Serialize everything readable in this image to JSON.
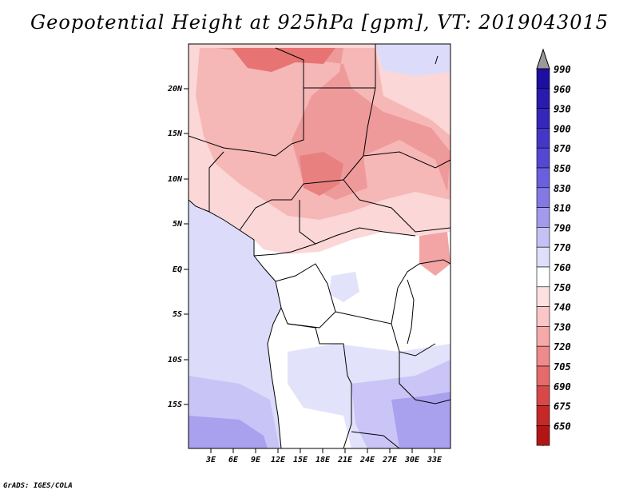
{
  "title": "Geopotential Height at 925hPa [gpm], VT: 2019043015",
  "credit": "GrADS: IGES/COLA",
  "map": {
    "y_axis_ticks": [
      "20N",
      "15N",
      "10N",
      "5N",
      "EQ",
      "5S",
      "10S",
      "15S"
    ],
    "x_axis_ticks": [
      "3E",
      "6E",
      "9E",
      "12E",
      "15E",
      "18E",
      "21E",
      "24E",
      "27E",
      "30E",
      "33E"
    ]
  },
  "colorbar": {
    "levels": [
      "990",
      "960",
      "930",
      "900",
      "870",
      "850",
      "830",
      "810",
      "790",
      "770",
      "760",
      "750",
      "740",
      "730",
      "720",
      "705",
      "690",
      "675",
      "650"
    ],
    "colors": [
      "#1e0fa0",
      "#2a1aad",
      "#3626ba",
      "#4536c7",
      "#5547d2",
      "#6a5fdc",
      "#8479e4",
      "#a39aed",
      "#c6c1f5",
      "#e0dffb",
      "#ffffff",
      "#fde0e0",
      "#fac6c6",
      "#f5a9a9",
      "#ef8a8a",
      "#e56a6a",
      "#d84848",
      "#c62828",
      "#b31515"
    ]
  }
}
